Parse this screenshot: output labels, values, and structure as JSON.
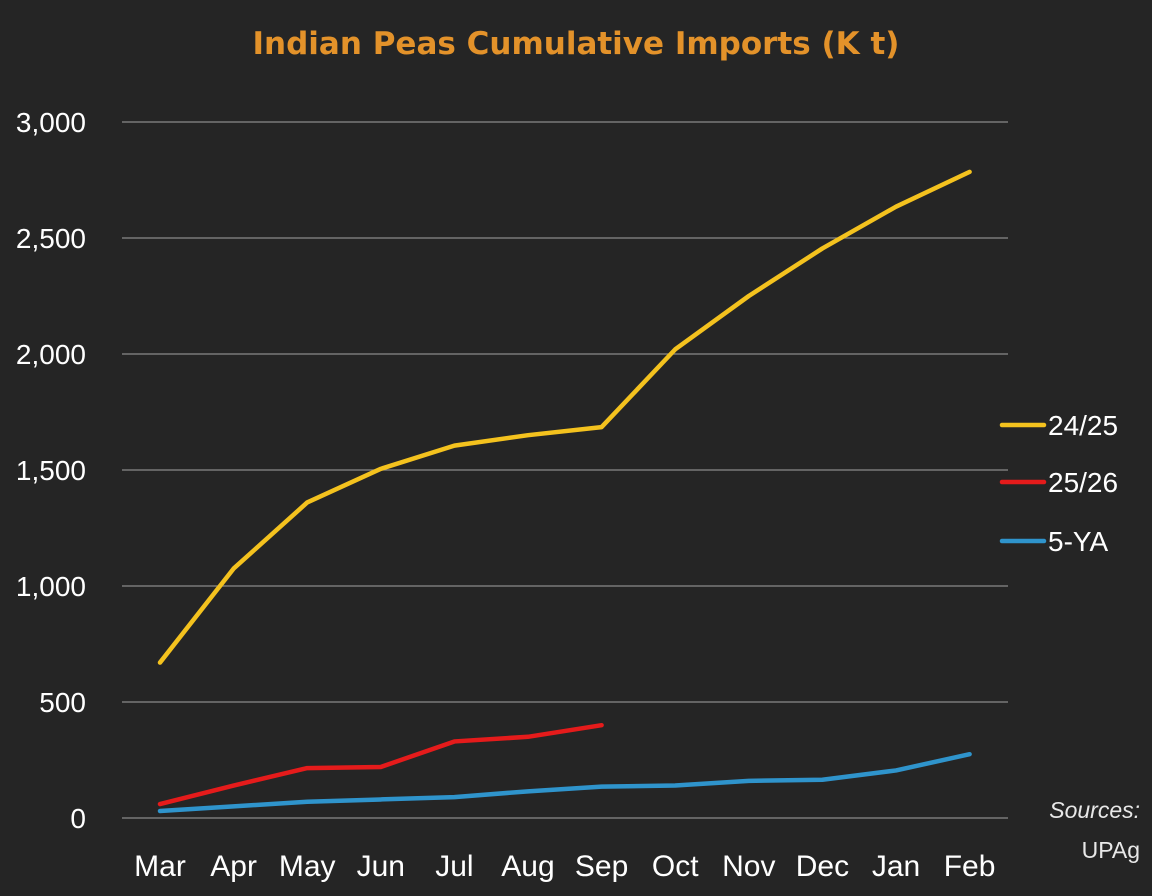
{
  "chart_data": {
    "type": "line",
    "title": "Indian Peas Cumulative Imports (K t)",
    "xlabel": "",
    "ylabel": "",
    "categories": [
      "Mar",
      "Apr",
      "May",
      "Jun",
      "Jul",
      "Aug",
      "Sep",
      "Oct",
      "Nov",
      "Dec",
      "Jan",
      "Feb"
    ],
    "ylim": [
      0,
      3000
    ],
    "yticks": [
      0,
      500,
      1000,
      1500,
      2000,
      2500,
      3000
    ],
    "ytick_labels": [
      "0",
      "500",
      "1,000",
      "1,500",
      "2,000",
      "2,500",
      "3,000"
    ],
    "grid": "horizontal",
    "legend_position": "right",
    "series": [
      {
        "name": "24/25",
        "color": "#f4c21e",
        "values": [
          670,
          1075,
          1360,
          1505,
          1605,
          1650,
          1685,
          2020,
          2250,
          2455,
          2635,
          2785
        ]
      },
      {
        "name": "25/26",
        "color": "#e51b1b",
        "values": [
          60,
          140,
          215,
          220,
          330,
          350,
          400,
          null,
          null,
          null,
          null,
          null
        ]
      },
      {
        "name": "5-YA",
        "color": "#2f94cc",
        "values": [
          30,
          50,
          70,
          80,
          90,
          115,
          135,
          140,
          160,
          165,
          205,
          275
        ]
      }
    ],
    "source_label": "Sources:",
    "source_name": "UPAg"
  },
  "colors": {
    "background": "#252525",
    "title": "#e3922a",
    "grid": "#8a8a8a",
    "text": "#ffffff"
  }
}
